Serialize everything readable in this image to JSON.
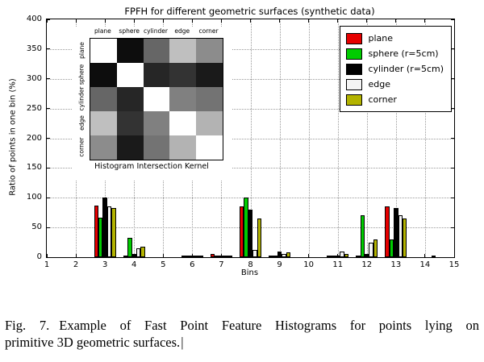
{
  "caption": {
    "fig_label": "Fig. 7.",
    "line1": "Example of Fast Point Feature Histograms for points lying on",
    "line2": "primitive 3D geometric surfaces.",
    "cursor": "|"
  },
  "chart_data": {
    "type": "bar",
    "title": "FPFH for different geometric surfaces (synthetic data)",
    "xlabel": "Bins",
    "ylabel": "Ratio of points in one bin (%)",
    "xlim": [
      1,
      15
    ],
    "ylim": [
      0,
      400
    ],
    "xticks": [
      1,
      2,
      3,
      4,
      5,
      6,
      7,
      8,
      9,
      10,
      11,
      12,
      13,
      14,
      15
    ],
    "yticks": [
      0,
      50,
      100,
      150,
      200,
      250,
      300,
      350,
      400
    ],
    "grid": true,
    "legend_position": "upper right",
    "bar_edge_color": "#000000",
    "categories": [
      1,
      2,
      3,
      4,
      5,
      6,
      7,
      8,
      9,
      10,
      11,
      12,
      13,
      14,
      15
    ],
    "series": [
      {
        "name": "plane",
        "color": "#e60000",
        "values": [
          0,
          0,
          87,
          3,
          0,
          1,
          6,
          85,
          1,
          0,
          2,
          1,
          85,
          0,
          0
        ]
      },
      {
        "name": "sphere (r=5cm)",
        "color": "#00cc00",
        "values": [
          0,
          0,
          67,
          33,
          0,
          1,
          2,
          100,
          2,
          0,
          2,
          70,
          30,
          0,
          0
        ]
      },
      {
        "name": "cylinder (r=5cm)",
        "color": "#000000",
        "values": [
          0,
          0,
          100,
          6,
          0,
          1,
          3,
          80,
          10,
          0,
          3,
          5,
          83,
          0,
          0
        ]
      },
      {
        "name": "edge",
        "color": "#f4f4f4",
        "values": [
          0,
          0,
          85,
          15,
          0,
          1,
          2,
          12,
          5,
          0,
          10,
          25,
          70,
          0,
          0
        ]
      },
      {
        "name": "corner",
        "color": "#b3b300",
        "values": [
          0,
          0,
          83,
          17,
          0,
          2,
          2,
          65,
          8,
          0,
          5,
          30,
          65,
          3,
          0
        ]
      }
    ],
    "inset": {
      "title": "Histogram Intersection Kernel",
      "labels": [
        "plane",
        "sphere",
        "cylinder",
        "edge",
        "corner"
      ],
      "matrix": [
        [
          1.0,
          0.05,
          0.4,
          0.75,
          0.55
        ],
        [
          0.05,
          1.0,
          0.15,
          0.2,
          0.1
        ],
        [
          0.4,
          0.15,
          1.0,
          0.5,
          0.45
        ],
        [
          0.75,
          0.2,
          0.5,
          1.0,
          0.7
        ],
        [
          0.55,
          0.1,
          0.45,
          0.7,
          1.0
        ]
      ]
    }
  }
}
